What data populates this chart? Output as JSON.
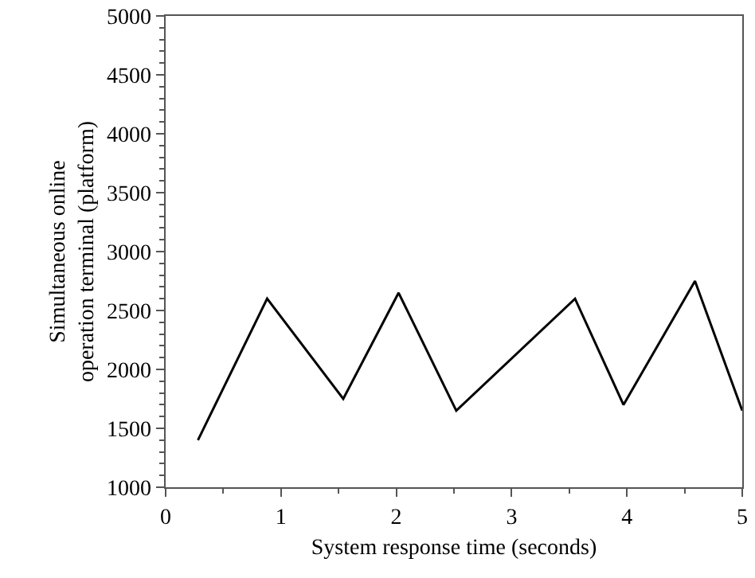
{
  "chart_data": {
    "type": "line",
    "xlabel": "System response time (seconds)",
    "ylabel": "Simultaneous online operation terminal (platform)",
    "x": [
      0.28,
      0.88,
      1.54,
      2.02,
      2.52,
      3.55,
      3.97,
      4.59,
      5.0
    ],
    "series": [
      {
        "color": "#000000",
        "values": [
          1400,
          2600,
          1750,
          2650,
          1650,
          2600,
          1700,
          2750,
          1650
        ]
      }
    ],
    "xlim": [
      0,
      5
    ],
    "xticks": [
      0,
      1,
      2,
      3,
      4,
      5
    ],
    "ylim": [
      1000,
      5000
    ],
    "yticks": [
      1000,
      1500,
      2000,
      2500,
      3000,
      3500,
      4000,
      4500,
      5000
    ],
    "marker": "none",
    "line_style": "solid"
  }
}
